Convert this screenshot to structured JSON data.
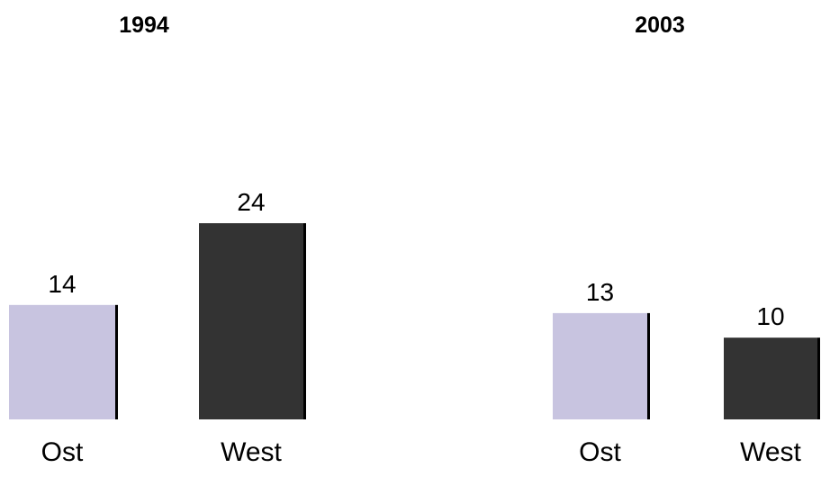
{
  "chart_data": [
    {
      "type": "bar",
      "title": "1994",
      "categories": [
        "Ost",
        "West"
      ],
      "values": [
        14,
        24
      ],
      "colors": [
        "#c8c4e0",
        "#333333"
      ],
      "ylim": [
        0,
        24
      ],
      "grid": false,
      "data_labels": true
    },
    {
      "type": "bar",
      "title": "2003",
      "categories": [
        "Ost",
        "West"
      ],
      "values": [
        13,
        10
      ],
      "colors": [
        "#c8c4e0",
        "#333333"
      ],
      "ylim": [
        0,
        24
      ],
      "grid": false,
      "data_labels": true
    }
  ]
}
